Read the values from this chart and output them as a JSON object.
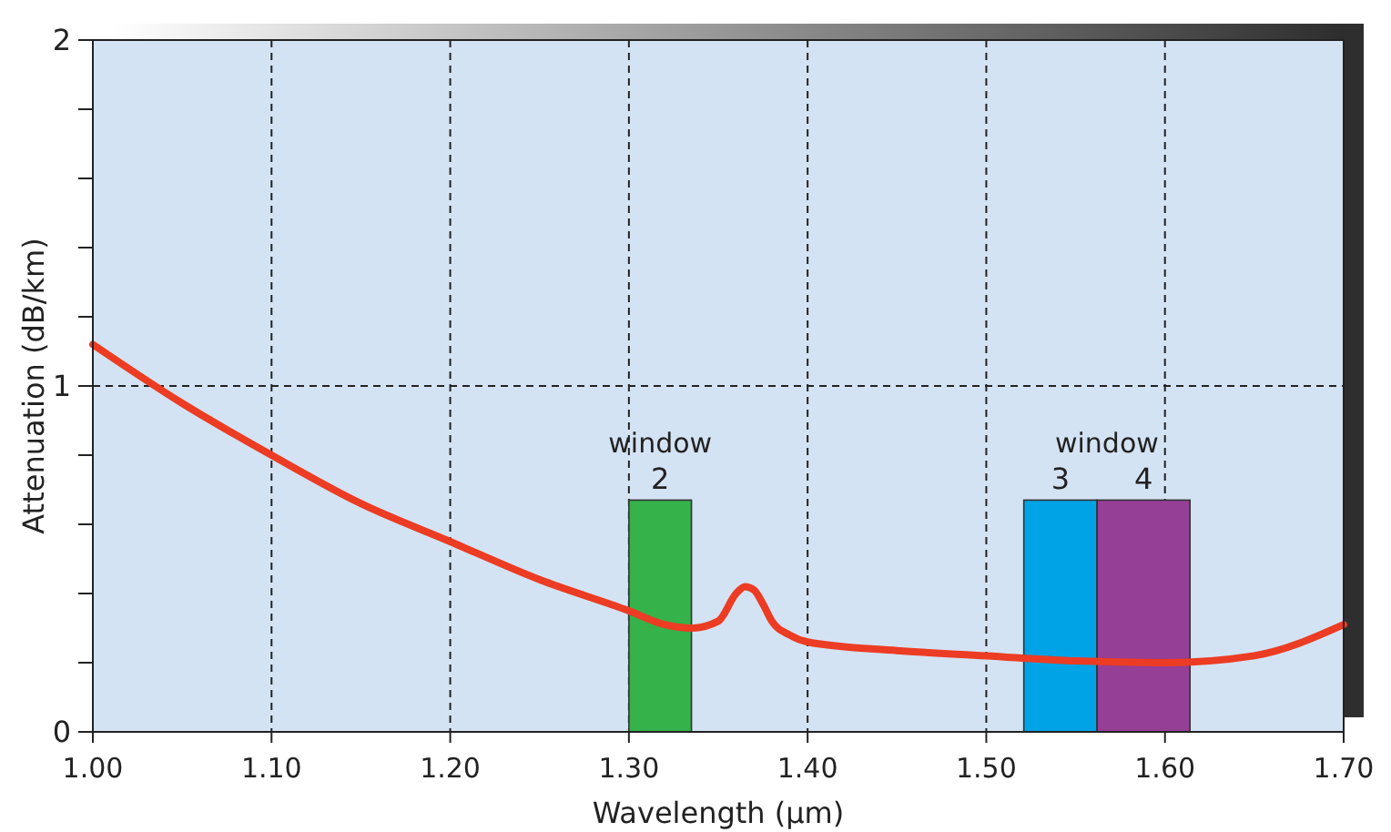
{
  "chart_data": {
    "type": "line",
    "xlabel": "Wavelength (µm)",
    "ylabel": "Attenuation (dB/km)",
    "xlim": [
      1.0,
      1.7
    ],
    "ylim": [
      0,
      2
    ],
    "xticks": [
      {
        "value": 1.0,
        "label": "1.00"
      },
      {
        "value": 1.1,
        "label": "1.10"
      },
      {
        "value": 1.2,
        "label": "1.20"
      },
      {
        "value": 1.3,
        "label": "1.30"
      },
      {
        "value": 1.4,
        "label": "1.40"
      },
      {
        "value": 1.5,
        "label": "1.50"
      },
      {
        "value": 1.6,
        "label": "1.60"
      },
      {
        "value": 1.7,
        "label": "1.70"
      }
    ],
    "yticks": [
      0,
      {
        "value": 0.2,
        "label": null
      },
      {
        "value": 0.4,
        "label": null
      },
      {
        "value": 0.6,
        "label": null
      },
      {
        "value": 0.8,
        "label": null
      },
      1,
      {
        "value": 1.2,
        "label": null
      },
      {
        "value": 1.4,
        "label": null
      },
      {
        "value": 1.6,
        "label": null
      },
      {
        "value": 1.8,
        "label": null
      },
      2
    ],
    "grid": true,
    "series": [
      {
        "type": "histogram",
        "name": "2",
        "bins": [
          1.3,
          1.335
        ],
        "values": [
          0.67
        ],
        "color": "#35b24a"
      },
      {
        "type": "histogram",
        "name": "3",
        "bins": [
          1.521,
          1.562
        ],
        "values": [
          0.67
        ],
        "color": "#00a3e6"
      },
      {
        "type": "histogram",
        "name": "4",
        "bins": [
          1.562,
          1.614
        ],
        "values": [
          0.67
        ],
        "color": "#953f96"
      },
      {
        "color": "#ec3c23",
        "x": [
          1.0,
          1.05,
          1.1,
          1.15,
          1.2,
          1.25,
          1.3,
          1.32,
          1.335,
          1.35,
          1.36,
          1.365,
          1.37,
          1.375,
          1.38,
          1.39,
          1.4,
          1.45,
          1.5,
          1.55,
          1.6,
          1.65,
          1.7
        ],
        "values": [
          1.12,
          0.95,
          0.8,
          0.66,
          0.55,
          0.44,
          0.35,
          0.31,
          0.3,
          0.32,
          0.4,
          0.42,
          0.41,
          0.37,
          0.32,
          0.28,
          0.26,
          0.235,
          0.22,
          0.205,
          0.2,
          0.22,
          0.31
        ]
      }
    ],
    "annotations": [
      "window",
      "window"
    ]
  }
}
